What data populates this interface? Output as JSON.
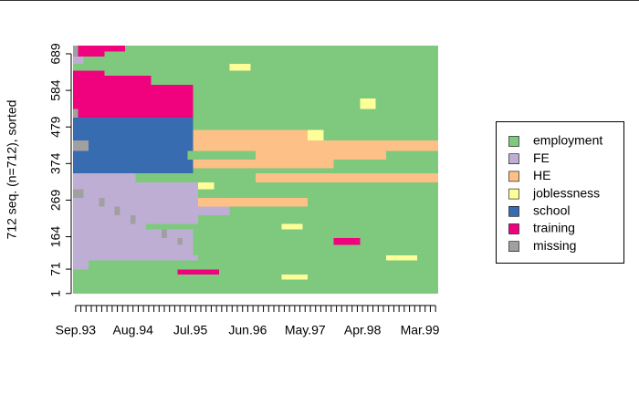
{
  "chart_data": {
    "type": "sequence-index",
    "ylabel": "712 seq. (n=712), sorted",
    "categories": [
      "Sep.93",
      null,
      null,
      null,
      null,
      null,
      null,
      null,
      null,
      null,
      null,
      "Aug.94",
      null,
      null,
      null,
      null,
      null,
      null,
      null,
      null,
      null,
      null,
      "Jul.95",
      null,
      null,
      null,
      null,
      null,
      null,
      null,
      null,
      null,
      null,
      "Jun.96",
      null,
      null,
      null,
      null,
      null,
      null,
      null,
      null,
      null,
      null,
      "May.97",
      null,
      null,
      null,
      null,
      null,
      null,
      null,
      null,
      null,
      null,
      "Apr.98",
      null,
      null,
      null,
      null,
      null,
      null,
      null,
      null,
      null,
      null,
      "Mar.99",
      null,
      null,
      null
    ],
    "ylim": [
      1,
      712
    ],
    "yticks": [
      1,
      71,
      164,
      269,
      374,
      479,
      584,
      689
    ],
    "legend": "right",
    "states": [
      {
        "name": "employment",
        "color": "#7fc97f"
      },
      {
        "name": "FE",
        "color": "#beaed4"
      },
      {
        "name": "HE",
        "color": "#fdc086"
      },
      {
        "name": "joblessness",
        "color": "#ffff99"
      },
      {
        "name": "school",
        "color": "#386cb0"
      },
      {
        "name": "training",
        "color": "#f0027f"
      },
      {
        "name": "missing",
        "color": "#a0a0a0"
      }
    ],
    "groups": [
      {
        "rows": [
          1,
          40
        ],
        "spells": [
          [
            0,
            1,
            70
          ]
        ]
      },
      {
        "rows": [
          41,
          55
        ],
        "spells": [
          [
            0,
            1,
            40
          ],
          [
            3,
            41,
            45
          ],
          [
            0,
            46,
            70
          ]
        ]
      },
      {
        "rows": [
          56,
          70
        ],
        "spells": [
          [
            0,
            1,
            20
          ],
          [
            5,
            21,
            28
          ],
          [
            0,
            29,
            70
          ]
        ]
      },
      {
        "rows": [
          71,
          95
        ],
        "spells": [
          [
            1,
            1,
            3
          ],
          [
            0,
            4,
            70
          ]
        ]
      },
      {
        "rows": [
          96,
          110
        ],
        "spells": [
          [
            1,
            1,
            24
          ],
          [
            0,
            25,
            60
          ],
          [
            3,
            61,
            66
          ],
          [
            0,
            67,
            70
          ]
        ]
      },
      {
        "rows": [
          111,
          140
        ],
        "spells": [
          [
            1,
            1,
            23
          ],
          [
            0,
            24,
            70
          ]
        ]
      },
      {
        "rows": [
          141,
          160
        ],
        "spells": [
          [
            1,
            1,
            20
          ],
          [
            6,
            21,
            21
          ],
          [
            1,
            22,
            23
          ],
          [
            0,
            24,
            50
          ],
          [
            5,
            51,
            55
          ],
          [
            0,
            56,
            70
          ]
        ]
      },
      {
        "rows": [
          161,
          185
        ],
        "spells": [
          [
            1,
            1,
            17
          ],
          [
            6,
            18,
            18
          ],
          [
            1,
            19,
            23
          ],
          [
            0,
            24,
            70
          ]
        ]
      },
      {
        "rows": [
          186,
          200
        ],
        "spells": [
          [
            1,
            1,
            14
          ],
          [
            0,
            15,
            40
          ],
          [
            3,
            41,
            44
          ],
          [
            0,
            45,
            70
          ]
        ]
      },
      {
        "rows": [
          201,
          225
        ],
        "spells": [
          [
            1,
            1,
            11
          ],
          [
            6,
            12,
            12
          ],
          [
            1,
            13,
            24
          ],
          [
            0,
            25,
            70
          ]
        ]
      },
      {
        "rows": [
          226,
          250
        ],
        "spells": [
          [
            1,
            1,
            8
          ],
          [
            6,
            9,
            9
          ],
          [
            1,
            10,
            30
          ],
          [
            0,
            31,
            70
          ]
        ]
      },
      {
        "rows": [
          251,
          275
        ],
        "spells": [
          [
            1,
            1,
            5
          ],
          [
            6,
            6,
            6
          ],
          [
            1,
            7,
            24
          ],
          [
            2,
            25,
            45
          ],
          [
            0,
            46,
            70
          ]
        ]
      },
      {
        "rows": [
          276,
          300
        ],
        "spells": [
          [
            6,
            1,
            2
          ],
          [
            1,
            3,
            24
          ],
          [
            0,
            25,
            70
          ]
        ]
      },
      {
        "rows": [
          301,
          320
        ],
        "spells": [
          [
            1,
            1,
            24
          ],
          [
            3,
            25,
            27
          ],
          [
            0,
            28,
            70
          ]
        ]
      },
      {
        "rows": [
          321,
          345
        ],
        "spells": [
          [
            1,
            1,
            12
          ],
          [
            0,
            13,
            35
          ],
          [
            2,
            36,
            70
          ]
        ]
      },
      {
        "rows": [
          346,
          360
        ],
        "spells": [
          [
            4,
            1,
            23
          ],
          [
            0,
            24,
            70
          ]
        ]
      },
      {
        "rows": [
          361,
          385
        ],
        "spells": [
          [
            4,
            1,
            23
          ],
          [
            2,
            24,
            50
          ],
          [
            0,
            51,
            70
          ]
        ]
      },
      {
        "rows": [
          386,
          410
        ],
        "spells": [
          [
            4,
            1,
            22
          ],
          [
            0,
            23,
            35
          ],
          [
            2,
            36,
            60
          ],
          [
            0,
            61,
            70
          ]
        ]
      },
      {
        "rows": [
          411,
          440
        ],
        "spells": [
          [
            6,
            1,
            3
          ],
          [
            4,
            4,
            23
          ],
          [
            2,
            24,
            70
          ]
        ]
      },
      {
        "rows": [
          441,
          470
        ],
        "spells": [
          [
            4,
            1,
            23
          ],
          [
            2,
            24,
            45
          ],
          [
            3,
            46,
            48
          ],
          [
            0,
            49,
            70
          ]
        ]
      },
      {
        "rows": [
          471,
          505
        ],
        "spells": [
          [
            4,
            1,
            23
          ],
          [
            0,
            24,
            70
          ]
        ]
      },
      {
        "rows": [
          506,
          530
        ],
        "spells": [
          [
            6,
            1,
            1
          ],
          [
            5,
            2,
            23
          ],
          [
            0,
            24,
            70
          ]
        ]
      },
      {
        "rows": [
          531,
          560
        ],
        "spells": [
          [
            5,
            1,
            23
          ],
          [
            0,
            24,
            55
          ],
          [
            3,
            56,
            58
          ],
          [
            0,
            59,
            70
          ]
        ]
      },
      {
        "rows": [
          561,
          600
        ],
        "spells": [
          [
            5,
            1,
            23
          ],
          [
            0,
            24,
            70
          ]
        ]
      },
      {
        "rows": [
          601,
          625
        ],
        "spells": [
          [
            5,
            1,
            15
          ],
          [
            0,
            16,
            70
          ]
        ]
      },
      {
        "rows": [
          626,
          640
        ],
        "spells": [
          [
            5,
            1,
            6
          ],
          [
            0,
            7,
            70
          ]
        ]
      },
      {
        "rows": [
          641,
          660
        ],
        "spells": [
          [
            0,
            1,
            30
          ],
          [
            3,
            31,
            34
          ],
          [
            0,
            35,
            70
          ]
        ]
      },
      {
        "rows": [
          661,
          680
        ],
        "spells": [
          [
            1,
            1,
            2
          ],
          [
            0,
            3,
            70
          ]
        ]
      },
      {
        "rows": [
          681,
          695
        ],
        "spells": [
          [
            6,
            1,
            1
          ],
          [
            5,
            2,
            6
          ],
          [
            0,
            7,
            70
          ]
        ]
      },
      {
        "rows": [
          696,
          712
        ],
        "spells": [
          [
            6,
            1,
            1
          ],
          [
            5,
            2,
            10
          ],
          [
            0,
            11,
            70
          ]
        ]
      }
    ]
  }
}
